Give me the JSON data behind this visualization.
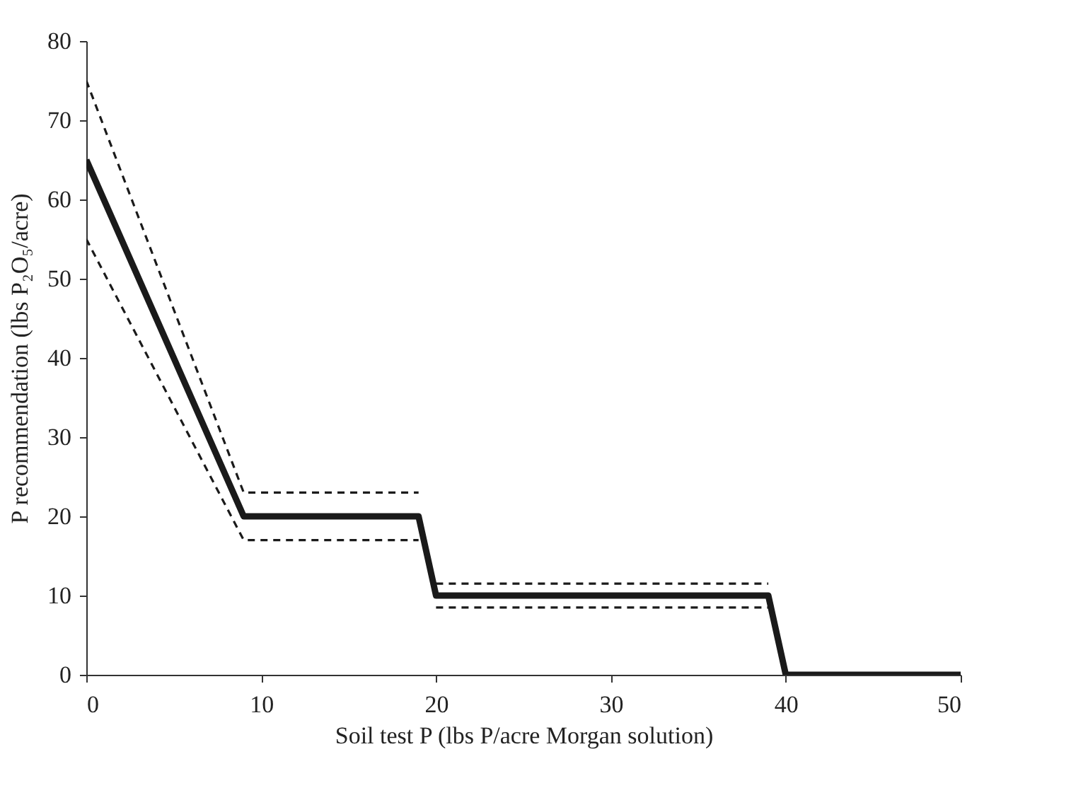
{
  "chart_data": {
    "type": "line",
    "xlabel": "Soil test P (lbs P/acre Morgan solution)",
    "ylabel": "P recommendation (lbs P₂O₅/acre)",
    "xlim": [
      0,
      50
    ],
    "ylim": [
      0,
      80
    ],
    "xticks": [
      0,
      10,
      20,
      30,
      40,
      50
    ],
    "yticks": [
      0,
      10,
      20,
      30,
      40,
      50,
      60,
      70,
      80
    ],
    "grid": false,
    "marker": "none",
    "series": [
      {
        "color": "#1a1a1a",
        "line_style": "solid",
        "x": [
          0,
          9,
          19,
          20,
          39,
          40,
          50
        ],
        "values": [
          65,
          20,
          20,
          10,
          10,
          0,
          0
        ]
      },
      {
        "color": "#1a1a1a",
        "line_style": "dashed",
        "x": [
          0,
          9,
          19
        ],
        "values": [
          75,
          23,
          23
        ]
      },
      {
        "color": "#1a1a1a",
        "line_style": "dashed",
        "x": [
          0,
          9,
          19
        ],
        "values": [
          55,
          17,
          17
        ]
      },
      {
        "color": "#1a1a1a",
        "line_style": "dashed",
        "x": [
          20,
          39
        ],
        "values": [
          11.5,
          11.5
        ]
      },
      {
        "color": "#1a1a1a",
        "line_style": "dashed",
        "x": [
          20,
          39
        ],
        "values": [
          8.5,
          8.5
        ]
      }
    ]
  }
}
